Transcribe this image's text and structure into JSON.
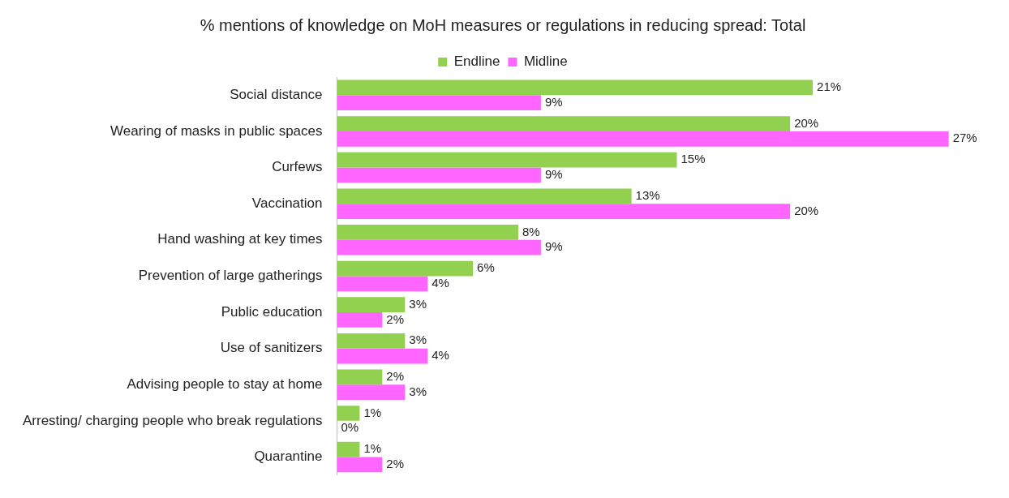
{
  "chart_data": {
    "type": "bar",
    "orientation": "horizontal",
    "title": "% mentions of knowledge on MoH measures or regulations in reducing spread: Total",
    "categories": [
      "Social distance",
      "Wearing of masks in public spaces",
      "Curfews",
      "Vaccination",
      "Hand washing at key times",
      "Prevention of large gatherings",
      "Public education",
      "Use of sanitizers",
      "Advising people to stay at home",
      "Arresting/ charging people who break regulations",
      "Quarantine"
    ],
    "series": [
      {
        "name": "Endline",
        "color": "#92d050",
        "values": [
          21,
          20,
          15,
          13,
          8,
          6,
          3,
          3,
          2,
          1,
          1
        ],
        "value_labels": [
          "21%",
          "20%",
          "15%",
          "13%",
          "8%",
          "6%",
          "3%",
          "3%",
          "2%",
          "1%",
          "1%"
        ]
      },
      {
        "name": "Midline",
        "color": "#ff66ff",
        "values": [
          9,
          27,
          9,
          20,
          9,
          4,
          2,
          4,
          3,
          0,
          2
        ],
        "value_labels": [
          "9%",
          "27%",
          "9%",
          "20%",
          "9%",
          "4%",
          "2%",
          "4%",
          "3%",
          "0%",
          "2%"
        ]
      }
    ],
    "legend": "top"
  }
}
